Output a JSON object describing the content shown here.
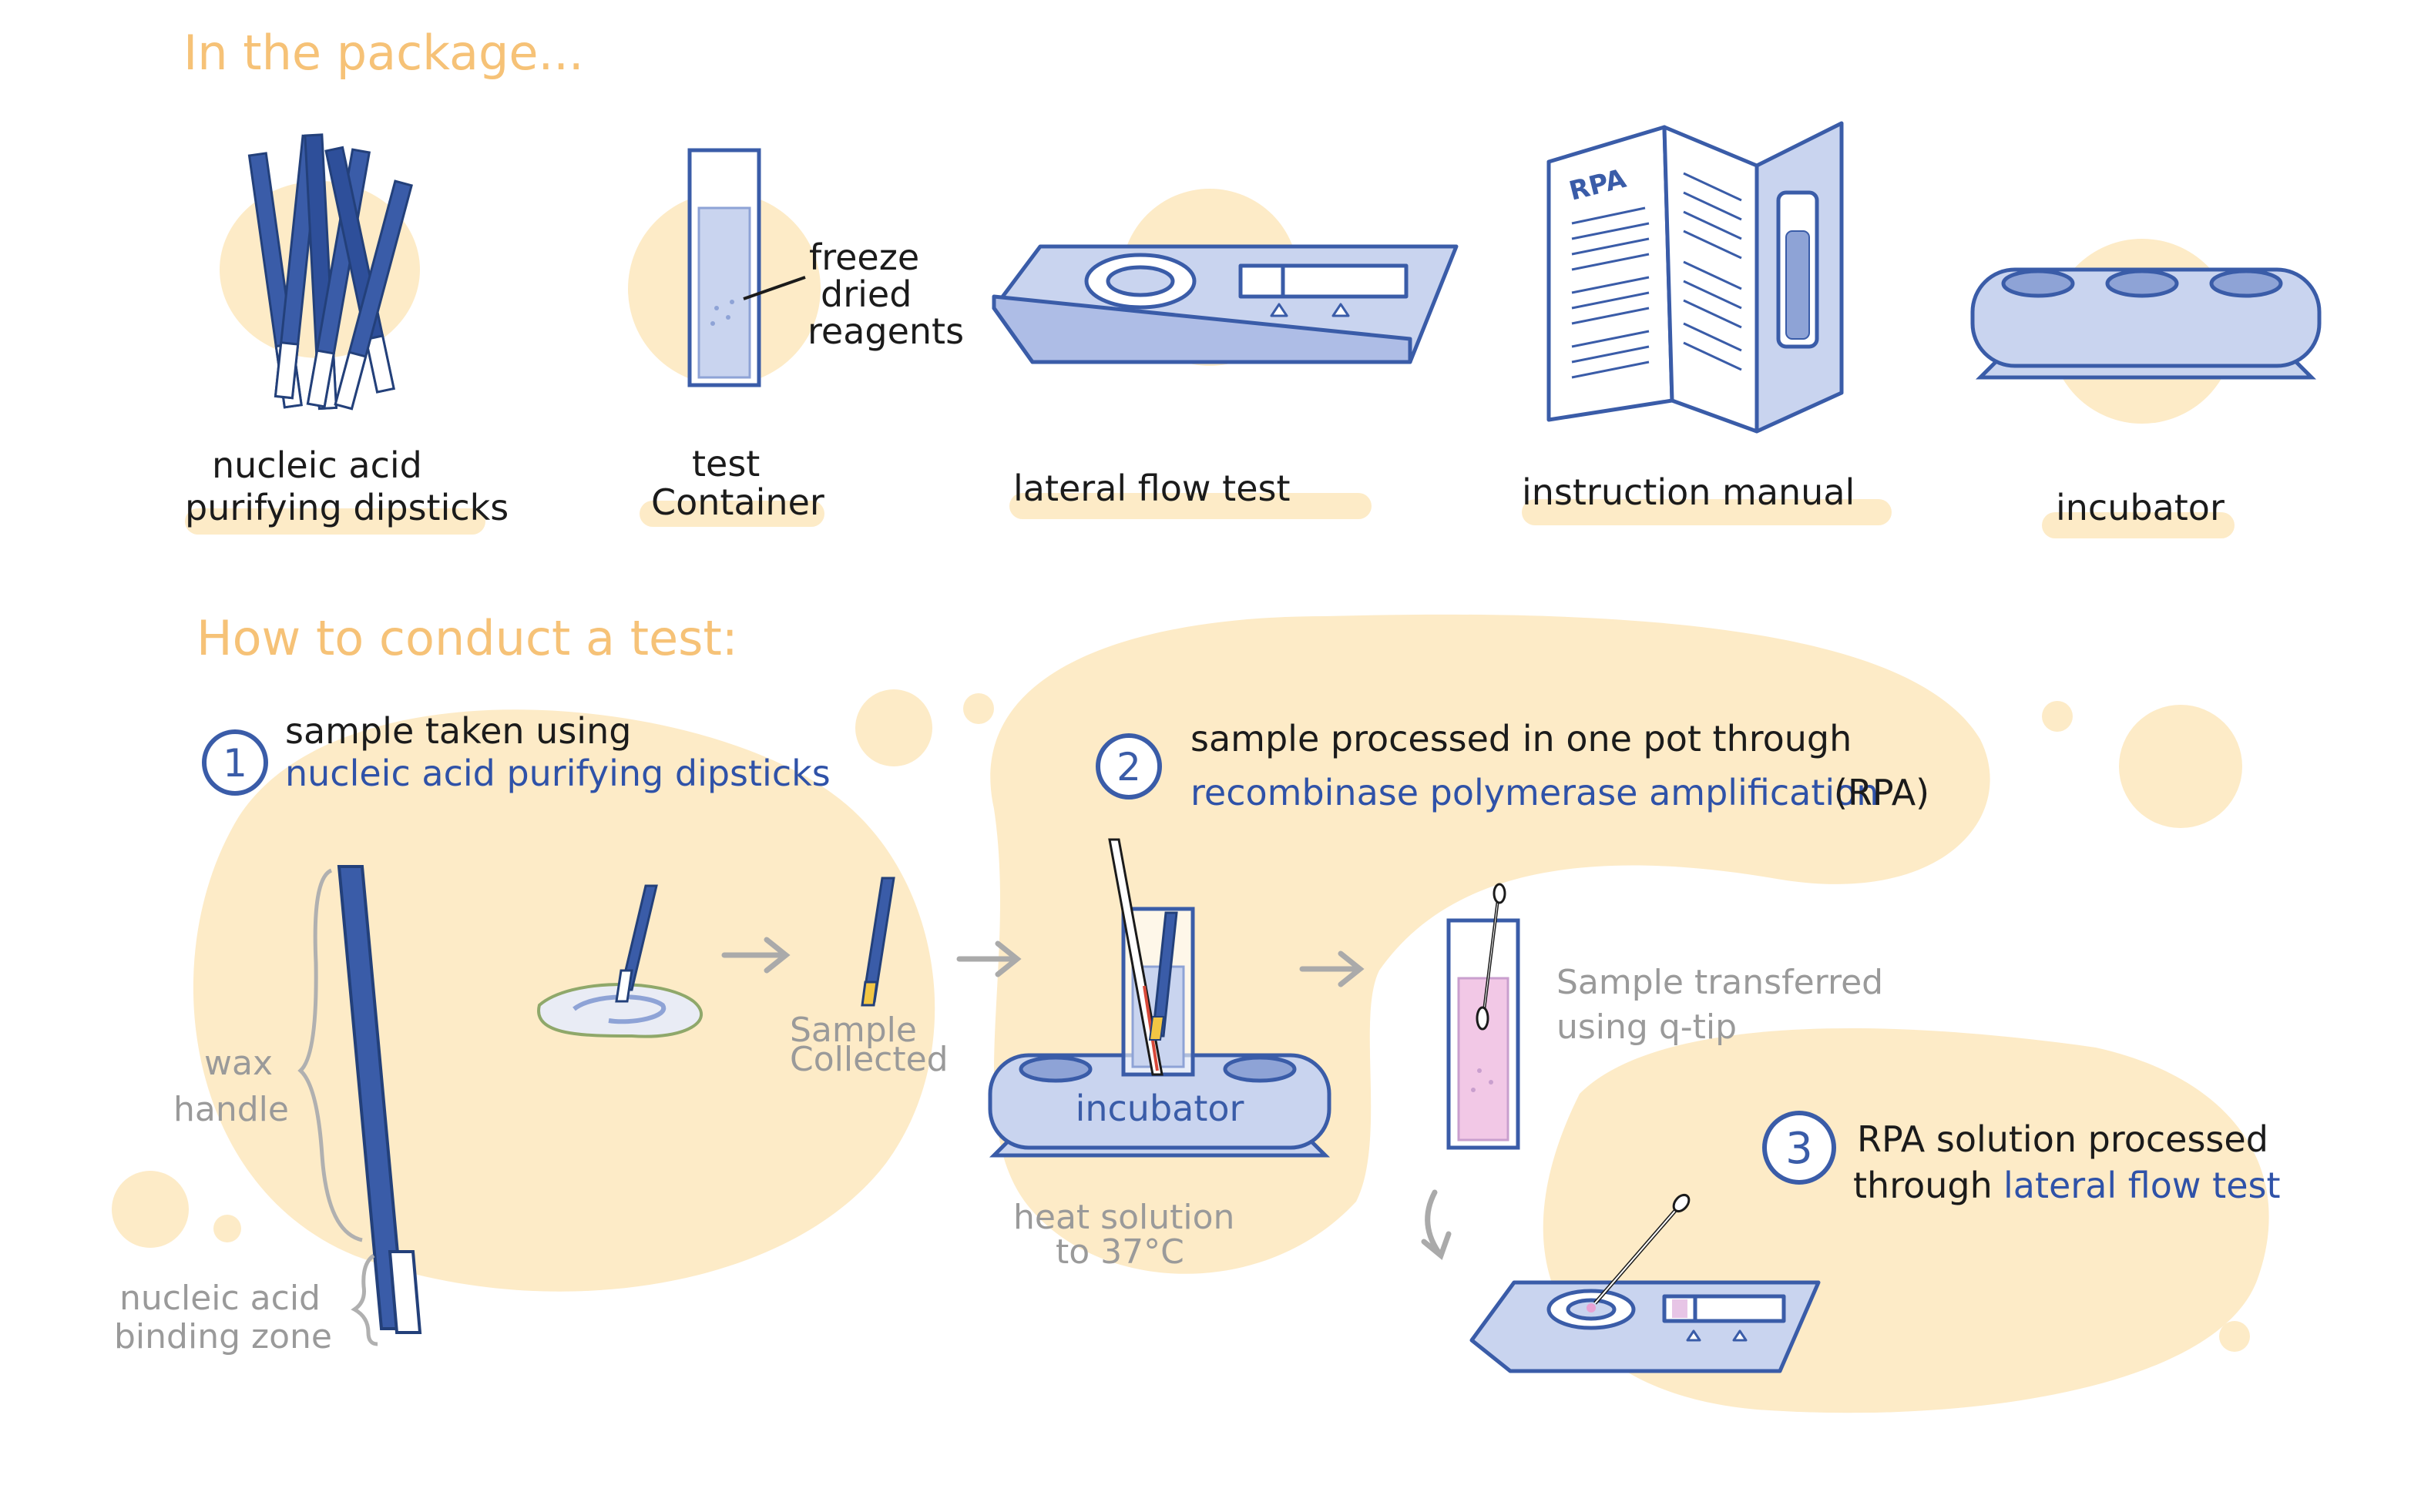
{
  "headings": {
    "package": "In the package...",
    "conduct": "How to conduct a test:"
  },
  "package_items": {
    "dipsticks": [
      "nucleic acid",
      "purifying dipsticks"
    ],
    "container": [
      "test",
      "Container"
    ],
    "freeze": [
      "freeze",
      "dried",
      "reagents"
    ],
    "lateral": "lateral flow test",
    "manual": "instruction manual",
    "manual_tag": "RPA",
    "incubator": "incubator"
  },
  "steps": {
    "s1": {
      "num": "1",
      "line1": "sample taken using",
      "line2": "nucleic acid purifying dipsticks"
    },
    "s2": {
      "num": "2",
      "line1": "sample processed in one pot through",
      "line2_blue": "recombinase polymerase amplification",
      "line2_black": "(RPA)"
    },
    "s3": {
      "num": "3",
      "line1": "RPA solution processed",
      "line2_black": "through",
      "line2_blue": "lateral flow test"
    }
  },
  "annotations": {
    "wax": [
      "wax",
      "handle"
    ],
    "binding": [
      "nucleic acid",
      "binding zone"
    ],
    "collected": [
      "Sample",
      "Collected"
    ],
    "incubator_label": "incubator",
    "heat": [
      "heat solution",
      "to 37°C"
    ],
    "transfer": [
      "Sample transferred",
      "using q-tip"
    ]
  },
  "colors": {
    "blob": "#fdebc7",
    "blue": "#3a5ca8",
    "light_blue": "#c9d4ef",
    "heading": "#f6c277",
    "gray": "#9a9a9a"
  }
}
